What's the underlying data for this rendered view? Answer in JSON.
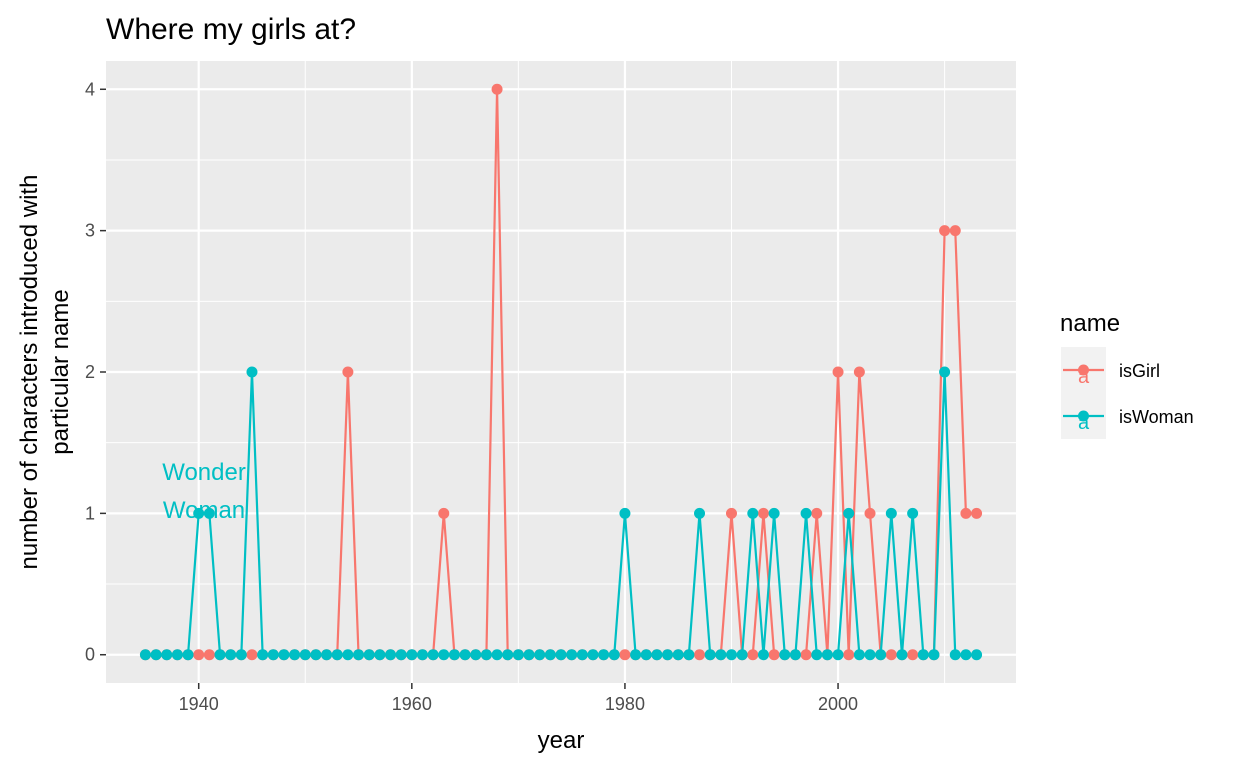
{
  "chart_data": {
    "type": "line",
    "title": "Where my girls at?",
    "xlabel": "year",
    "ylabel_lines": [
      "number of characters introduced with",
      "particular name"
    ],
    "xlim": [
      1931.3,
      2016.7
    ],
    "ylim": [
      -0.2,
      4.2
    ],
    "x_ticks": [
      1940,
      1960,
      1980,
      2000
    ],
    "x_tick_labels": [
      "1940",
      "1960",
      "1980",
      "2000"
    ],
    "y_ticks": [
      0,
      1,
      2,
      3,
      4
    ],
    "y_tick_labels": [
      "0",
      "1",
      "2",
      "3",
      "4"
    ],
    "grid": true,
    "legend": {
      "title": "name",
      "position": "right",
      "key_glyph": "a"
    },
    "annotation": {
      "lines": [
        "Wonder",
        "Woman"
      ],
      "x": 1940.5,
      "y_lines": [
        1.3,
        1.03
      ],
      "color": "#00BFC4"
    },
    "series": [
      {
        "name": "isGirl",
        "color": "#F8766D",
        "x": [
          1935,
          1936,
          1937,
          1938,
          1939,
          1940,
          1941,
          1942,
          1943,
          1944,
          1945,
          1946,
          1947,
          1948,
          1949,
          1950,
          1951,
          1952,
          1953,
          1954,
          1955,
          1956,
          1957,
          1958,
          1959,
          1960,
          1961,
          1962,
          1963,
          1964,
          1965,
          1966,
          1967,
          1968,
          1969,
          1970,
          1971,
          1972,
          1973,
          1974,
          1975,
          1976,
          1977,
          1978,
          1979,
          1980,
          1981,
          1982,
          1983,
          1984,
          1985,
          1986,
          1987,
          1988,
          1989,
          1990,
          1991,
          1992,
          1993,
          1994,
          1995,
          1996,
          1997,
          1998,
          1999,
          2000,
          2001,
          2002,
          2003,
          2004,
          2005,
          2006,
          2007,
          2008,
          2009,
          2010,
          2011,
          2012,
          2013
        ],
        "values": [
          0,
          0,
          0,
          0,
          0,
          0,
          0,
          0,
          0,
          0,
          0,
          0,
          0,
          0,
          0,
          0,
          0,
          0,
          0,
          2,
          0,
          0,
          0,
          0,
          0,
          0,
          0,
          0,
          1,
          0,
          0,
          0,
          0,
          4,
          0,
          0,
          0,
          0,
          0,
          0,
          0,
          0,
          0,
          0,
          0,
          0,
          0,
          0,
          0,
          0,
          0,
          0,
          0,
          0,
          0,
          1,
          0,
          0,
          1,
          0,
          0,
          0,
          0,
          1,
          0,
          2,
          0,
          2,
          1,
          0,
          0,
          0,
          0,
          0,
          0,
          3,
          3,
          1,
          1
        ]
      },
      {
        "name": "isWoman",
        "color": "#00BFC4",
        "x": [
          1935,
          1936,
          1937,
          1938,
          1939,
          1940,
          1941,
          1942,
          1943,
          1944,
          1945,
          1946,
          1947,
          1948,
          1949,
          1950,
          1951,
          1952,
          1953,
          1954,
          1955,
          1956,
          1957,
          1958,
          1959,
          1960,
          1961,
          1962,
          1963,
          1964,
          1965,
          1966,
          1967,
          1968,
          1969,
          1970,
          1971,
          1972,
          1973,
          1974,
          1975,
          1976,
          1977,
          1978,
          1979,
          1980,
          1981,
          1982,
          1983,
          1984,
          1985,
          1986,
          1987,
          1988,
          1989,
          1990,
          1991,
          1992,
          1993,
          1994,
          1995,
          1996,
          1997,
          1998,
          1999,
          2000,
          2001,
          2002,
          2003,
          2004,
          2005,
          2006,
          2007,
          2008,
          2009,
          2010,
          2011,
          2012,
          2013
        ],
        "values": [
          0,
          0,
          0,
          0,
          0,
          1,
          1,
          0,
          0,
          0,
          2,
          0,
          0,
          0,
          0,
          0,
          0,
          0,
          0,
          0,
          0,
          0,
          0,
          0,
          0,
          0,
          0,
          0,
          0,
          0,
          0,
          0,
          0,
          0,
          0,
          0,
          0,
          0,
          0,
          0,
          0,
          0,
          0,
          0,
          0,
          1,
          0,
          0,
          0,
          0,
          0,
          0,
          1,
          0,
          0,
          0,
          0,
          1,
          0,
          1,
          0,
          0,
          1,
          0,
          0,
          0,
          1,
          0,
          0,
          0,
          1,
          0,
          1,
          0,
          0,
          2,
          0,
          0,
          0
        ]
      }
    ]
  }
}
